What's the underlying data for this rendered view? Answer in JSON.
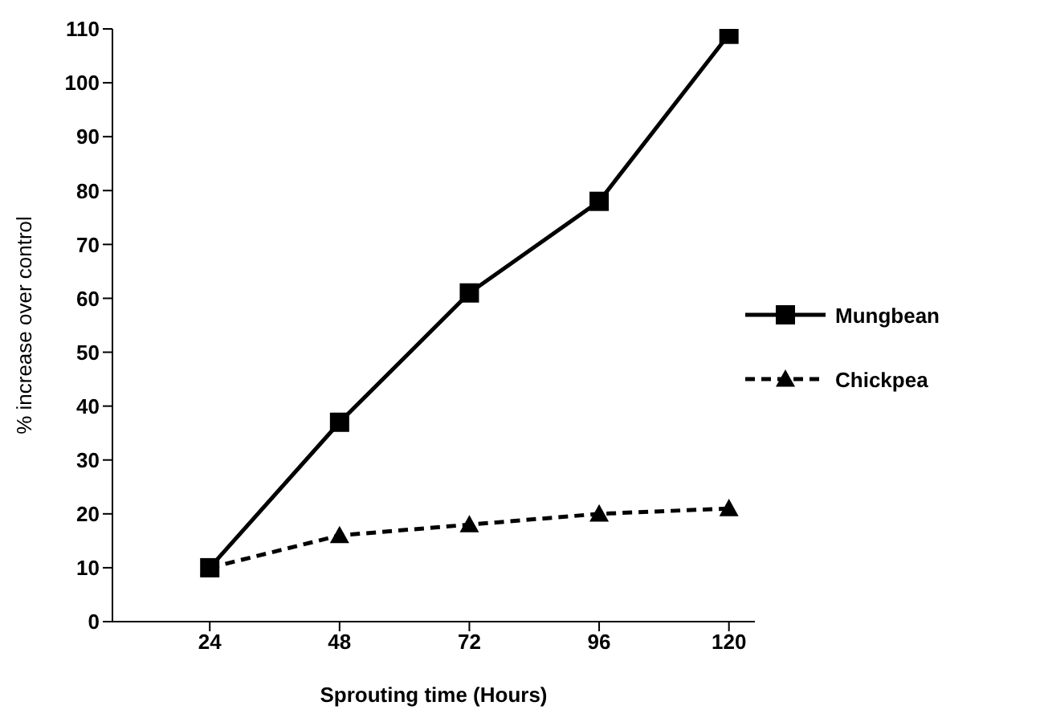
{
  "chart_data": {
    "type": "line",
    "xlabel": "Sprouting time (Hours)",
    "ylabel": "% increase over control",
    "categories": [
      "24",
      "48",
      "72",
      "96",
      "120"
    ],
    "series": [
      {
        "name": "Mungbean",
        "color": "#000000",
        "values": [
          10,
          37,
          61,
          78,
          109
        ],
        "marker": "square",
        "line_style": "solid"
      },
      {
        "name": "Chickpea",
        "color": "#000000",
        "values": [
          10,
          16,
          18,
          20,
          21
        ],
        "marker": "triangle",
        "line_style": "dashed"
      }
    ],
    "ylim": [
      0,
      110
    ],
    "yticks": [
      0,
      10,
      20,
      30,
      40,
      50,
      60,
      70,
      80,
      90,
      100,
      110
    ],
    "grid": false,
    "legend": "right"
  }
}
